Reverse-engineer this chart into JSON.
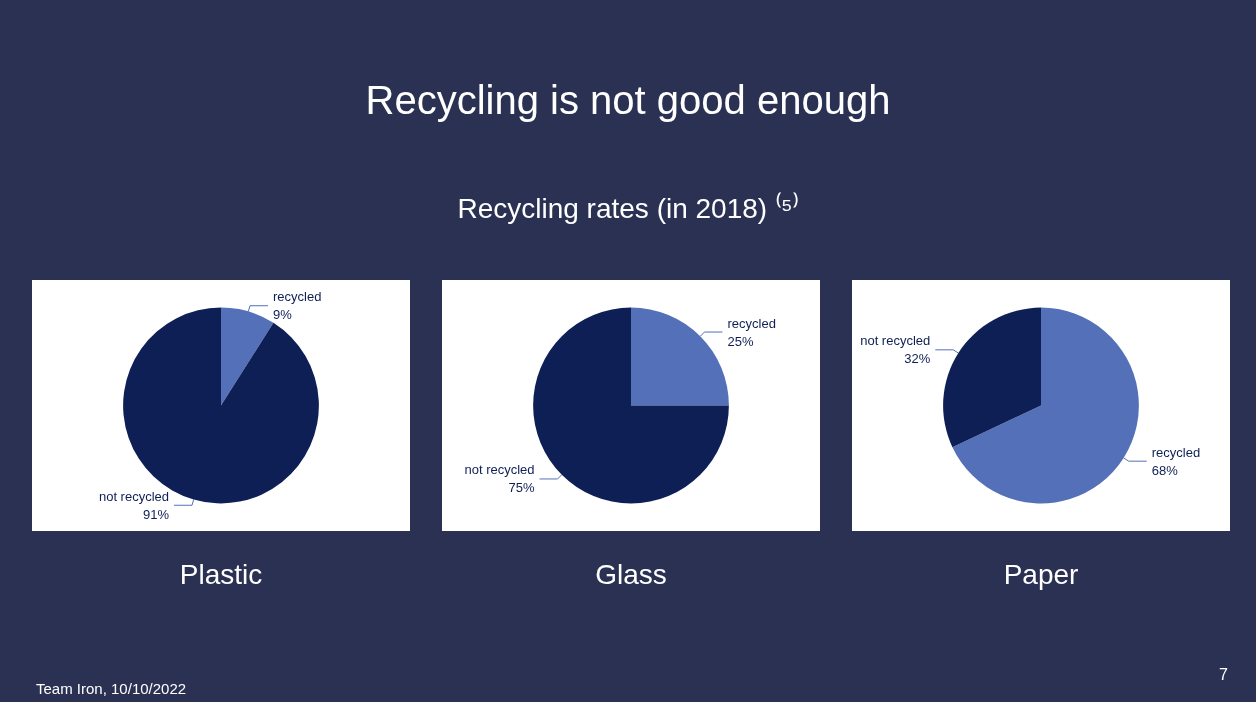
{
  "chart_data": [
    {
      "type": "pie",
      "title": "Plastic",
      "categories": [
        "recycled",
        "not recycled"
      ],
      "values": [
        9,
        91
      ],
      "value_labels": [
        "9%",
        "91%"
      ],
      "colors": [
        "#5470b8",
        "#0e1f56"
      ],
      "annotations": [
        "Recycling is not good enough",
        "Recycling rates (in 2018) ⁽⁵⁾",
        "Team Iron, 10/10/2022",
        "7"
      ]
    },
    {
      "type": "pie",
      "title": "Glass",
      "categories": [
        "recycled",
        "not recycled"
      ],
      "values": [
        25,
        75
      ],
      "value_labels": [
        "25%",
        "75%"
      ],
      "colors": [
        "#5470b8",
        "#0e1f56"
      ]
    },
    {
      "type": "pie",
      "title": "Paper",
      "categories": [
        "recycled",
        "not recycled"
      ],
      "values": [
        68,
        32
      ],
      "value_labels": [
        "68%",
        "32%"
      ],
      "colors": [
        "#5470b8",
        "#0e1f56"
      ]
    }
  ]
}
